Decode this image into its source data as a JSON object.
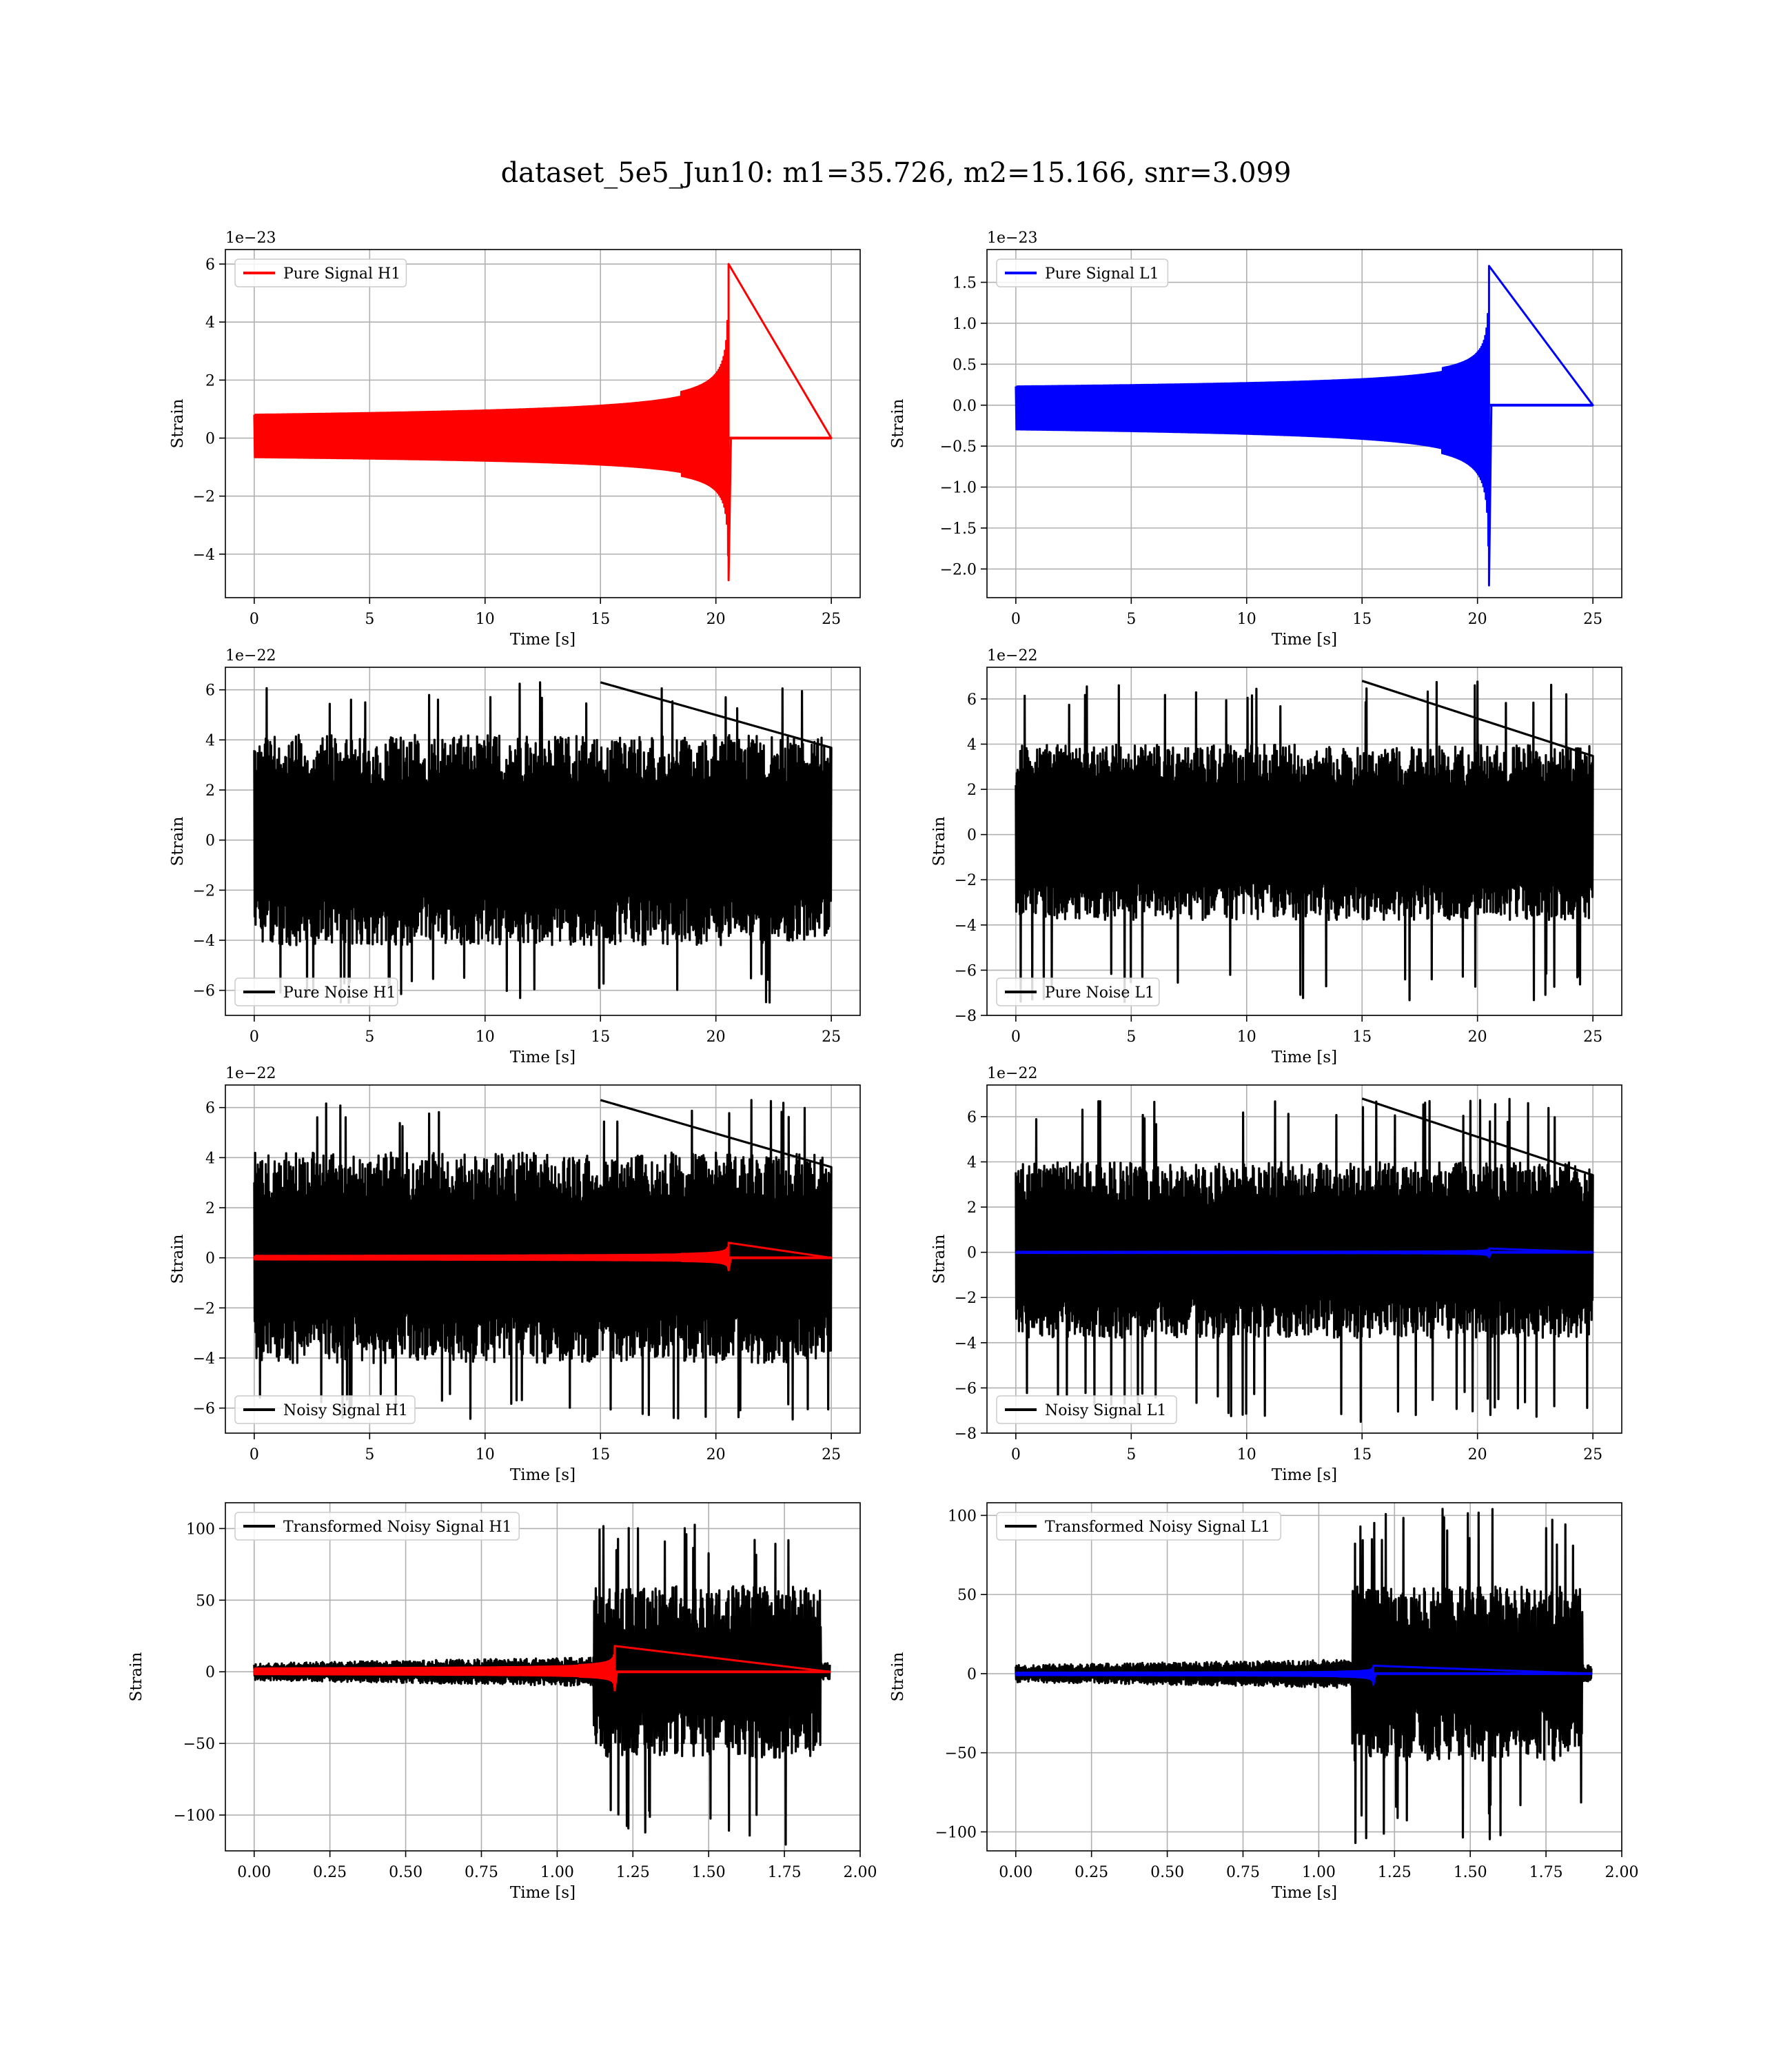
{
  "figure": {
    "title": "dataset_5e5_Jun10: m1=35.726, m2=15.166, snr=3.099",
    "colors": {
      "h1_signal": "#ff0000",
      "l1_signal": "#0000ff",
      "noise": "#000000",
      "grid": "#b0b0b0"
    }
  },
  "chart_data": [
    {
      "id": "pure-signal-h1",
      "type": "line",
      "title": "",
      "xlabel": "Time [s]",
      "ylabel": "Strain",
      "offset_text": "1e−23",
      "xlim": [
        -1.25,
        26.25
      ],
      "ylim": [
        -5.5,
        6.5
      ],
      "xticks": [
        0,
        5,
        10,
        15,
        20,
        25
      ],
      "yticks": [
        -4,
        -2,
        0,
        2,
        4,
        6
      ],
      "ytick_labels": [
        "−4",
        "−2",
        "0",
        "2",
        "4",
        "6"
      ],
      "grid": true,
      "legend_loc": "upper-left",
      "series": [
        {
          "name": "Pure Signal H1",
          "color": "#ff0000",
          "kind": "chirp",
          "t_start": 0,
          "t_end": 25,
          "merger_time": 20.55,
          "peak_pos": 6.0,
          "peak_neg": -4.9
        }
      ]
    },
    {
      "id": "pure-signal-l1",
      "type": "line",
      "title": "",
      "xlabel": "Time [s]",
      "ylabel": "Strain",
      "offset_text": "1e−23",
      "xlim": [
        -1.25,
        26.25
      ],
      "ylim": [
        -2.35,
        1.9
      ],
      "xticks": [
        0,
        5,
        10,
        15,
        20,
        25
      ],
      "yticks": [
        -2.0,
        -1.5,
        -1.0,
        -0.5,
        0.0,
        0.5,
        1.0,
        1.5
      ],
      "ytick_labels": [
        "−2.0",
        "−1.5",
        "−1.0",
        "−0.5",
        "0.0",
        "0.5",
        "1.0",
        "1.5"
      ],
      "grid": true,
      "legend_loc": "upper-left",
      "series": [
        {
          "name": "Pure Signal L1",
          "color": "#0000ff",
          "kind": "chirp",
          "t_start": 0,
          "t_end": 25,
          "merger_time": 20.5,
          "peak_pos": 1.7,
          "peak_neg": -2.2
        }
      ]
    },
    {
      "id": "pure-noise-h1",
      "type": "line",
      "title": "",
      "xlabel": "Time [s]",
      "ylabel": "Strain",
      "offset_text": "1e−22",
      "xlim": [
        -1.25,
        26.25
      ],
      "ylim": [
        -7.0,
        6.9
      ],
      "xticks": [
        0,
        5,
        10,
        15,
        20,
        25
      ],
      "yticks": [
        -6,
        -4,
        -2,
        0,
        2,
        4,
        6
      ],
      "ytick_labels": [
        "−6",
        "−4",
        "−2",
        "0",
        "2",
        "4",
        "6"
      ],
      "grid": true,
      "legend_loc": "lower-left",
      "series": [
        {
          "name": "Pure Noise H1",
          "color": "#000000",
          "kind": "noise",
          "t_start": 0,
          "t_end": 25,
          "core_hi": 4.0,
          "core_lo": -4.0,
          "max": 6.3,
          "min": -6.5
        }
      ]
    },
    {
      "id": "pure-noise-l1",
      "type": "line",
      "title": "",
      "xlabel": "Time [s]",
      "ylabel": "Strain",
      "offset_text": "1e−22",
      "xlim": [
        -1.25,
        26.25
      ],
      "ylim": [
        -8.0,
        7.4
      ],
      "xticks": [
        0,
        5,
        10,
        15,
        20,
        25
      ],
      "yticks": [
        -8,
        -6,
        -4,
        -2,
        0,
        2,
        4,
        6
      ],
      "ytick_labels": [
        "−8",
        "−6",
        "−4",
        "−2",
        "0",
        "2",
        "4",
        "6"
      ],
      "grid": true,
      "legend_loc": "lower-left",
      "series": [
        {
          "name": "Pure Noise L1",
          "color": "#000000",
          "kind": "noise",
          "t_start": 0,
          "t_end": 25,
          "core_hi": 3.8,
          "core_lo": -3.6,
          "max": 6.8,
          "min": -7.5
        }
      ]
    },
    {
      "id": "noisy-signal-h1",
      "type": "line",
      "title": "",
      "xlabel": "Time [s]",
      "ylabel": "Strain",
      "offset_text": "1e−22",
      "xlim": [
        -1.25,
        26.25
      ],
      "ylim": [
        -7.0,
        6.9
      ],
      "xticks": [
        0,
        5,
        10,
        15,
        20,
        25
      ],
      "yticks": [
        -6,
        -4,
        -2,
        0,
        2,
        4,
        6
      ],
      "ytick_labels": [
        "−6",
        "−4",
        "−2",
        "0",
        "2",
        "4",
        "6"
      ],
      "grid": true,
      "legend_loc": "lower-left",
      "series": [
        {
          "name": "Noisy Signal H1",
          "color": "#000000",
          "kind": "noise",
          "t_start": 0,
          "t_end": 25,
          "core_hi": 4.0,
          "core_lo": -4.0,
          "max": 6.3,
          "min": -6.5
        },
        {
          "name": "",
          "color": "#ff0000",
          "kind": "chirp",
          "t_start": 0,
          "t_end": 25,
          "merger_time": 20.55,
          "peak_pos": 0.6,
          "peak_neg": -0.5
        }
      ]
    },
    {
      "id": "noisy-signal-l1",
      "type": "line",
      "title": "",
      "xlabel": "Time [s]",
      "ylabel": "Strain",
      "offset_text": "1e−22",
      "xlim": [
        -1.25,
        26.25
      ],
      "ylim": [
        -8.0,
        7.4
      ],
      "xticks": [
        0,
        5,
        10,
        15,
        20,
        25
      ],
      "yticks": [
        -8,
        -6,
        -4,
        -2,
        0,
        2,
        4,
        6
      ],
      "ytick_labels": [
        "−8",
        "−6",
        "−4",
        "−2",
        "0",
        "2",
        "4",
        "6"
      ],
      "grid": true,
      "legend_loc": "lower-left",
      "series": [
        {
          "name": "Noisy Signal L1",
          "color": "#000000",
          "kind": "noise",
          "t_start": 0,
          "t_end": 25,
          "core_hi": 3.8,
          "core_lo": -3.6,
          "max": 6.8,
          "min": -7.5
        },
        {
          "name": "",
          "color": "#0000ff",
          "kind": "chirp",
          "t_start": 0,
          "t_end": 25,
          "merger_time": 20.5,
          "peak_pos": 0.17,
          "peak_neg": -0.22
        }
      ]
    },
    {
      "id": "transformed-noisy-signal-h1",
      "type": "line",
      "title": "",
      "xlabel": "Time [s]",
      "ylabel": "Strain",
      "offset_text": "",
      "xlim": [
        -0.095,
        2.0
      ],
      "ylim": [
        -125,
        118
      ],
      "xticks": [
        0.0,
        0.25,
        0.5,
        0.75,
        1.0,
        1.25,
        1.5,
        1.75,
        2.0
      ],
      "xtick_labels": [
        "0.00",
        "0.25",
        "0.50",
        "0.75",
        "1.00",
        "1.25",
        "1.50",
        "1.75",
        "2.00"
      ],
      "yticks": [
        -100,
        -50,
        0,
        50,
        100
      ],
      "ytick_labels": [
        "−100",
        "−50",
        "0",
        "50",
        "100"
      ],
      "grid": true,
      "legend_loc": "upper-left",
      "series": [
        {
          "name": "Transformed Noisy Signal H1",
          "color": "#000000",
          "kind": "transformed-noise",
          "t_start": 0,
          "t_end": 1.9,
          "step_time": 1.12,
          "end_time": 1.87,
          "pre_amp": 10,
          "post_amp": 60,
          "max": 108,
          "min": -124
        },
        {
          "name": "",
          "color": "#ff0000",
          "kind": "chirp",
          "t_start": 0,
          "t_end": 1.9,
          "merger_time": 1.19,
          "peak_pos": 18,
          "peak_neg": -13
        }
      ]
    },
    {
      "id": "transformed-noisy-signal-l1",
      "type": "line",
      "title": "",
      "xlabel": "Time [s]",
      "ylabel": "Strain",
      "offset_text": "",
      "xlim": [
        -0.095,
        2.0
      ],
      "ylim": [
        -112,
        108
      ],
      "xticks": [
        0.0,
        0.25,
        0.5,
        0.75,
        1.0,
        1.25,
        1.5,
        1.75,
        2.0
      ],
      "xtick_labels": [
        "0.00",
        "0.25",
        "0.50",
        "0.75",
        "1.00",
        "1.25",
        "1.50",
        "1.75",
        "2.00"
      ],
      "yticks": [
        -100,
        -50,
        0,
        50,
        100
      ],
      "ytick_labels": [
        "−100",
        "−50",
        "0",
        "50",
        "100"
      ],
      "grid": true,
      "legend_loc": "upper-left",
      "series": [
        {
          "name": "Transformed Noisy Signal L1",
          "color": "#000000",
          "kind": "transformed-noise",
          "t_start": 0,
          "t_end": 1.9,
          "step_time": 1.11,
          "end_time": 1.87,
          "pre_amp": 9,
          "post_amp": 55,
          "max": 105,
          "min": -107
        },
        {
          "name": "",
          "color": "#0000ff",
          "kind": "chirp",
          "t_start": 0,
          "t_end": 1.9,
          "merger_time": 1.18,
          "peak_pos": 5,
          "peak_neg": -7
        }
      ]
    }
  ]
}
